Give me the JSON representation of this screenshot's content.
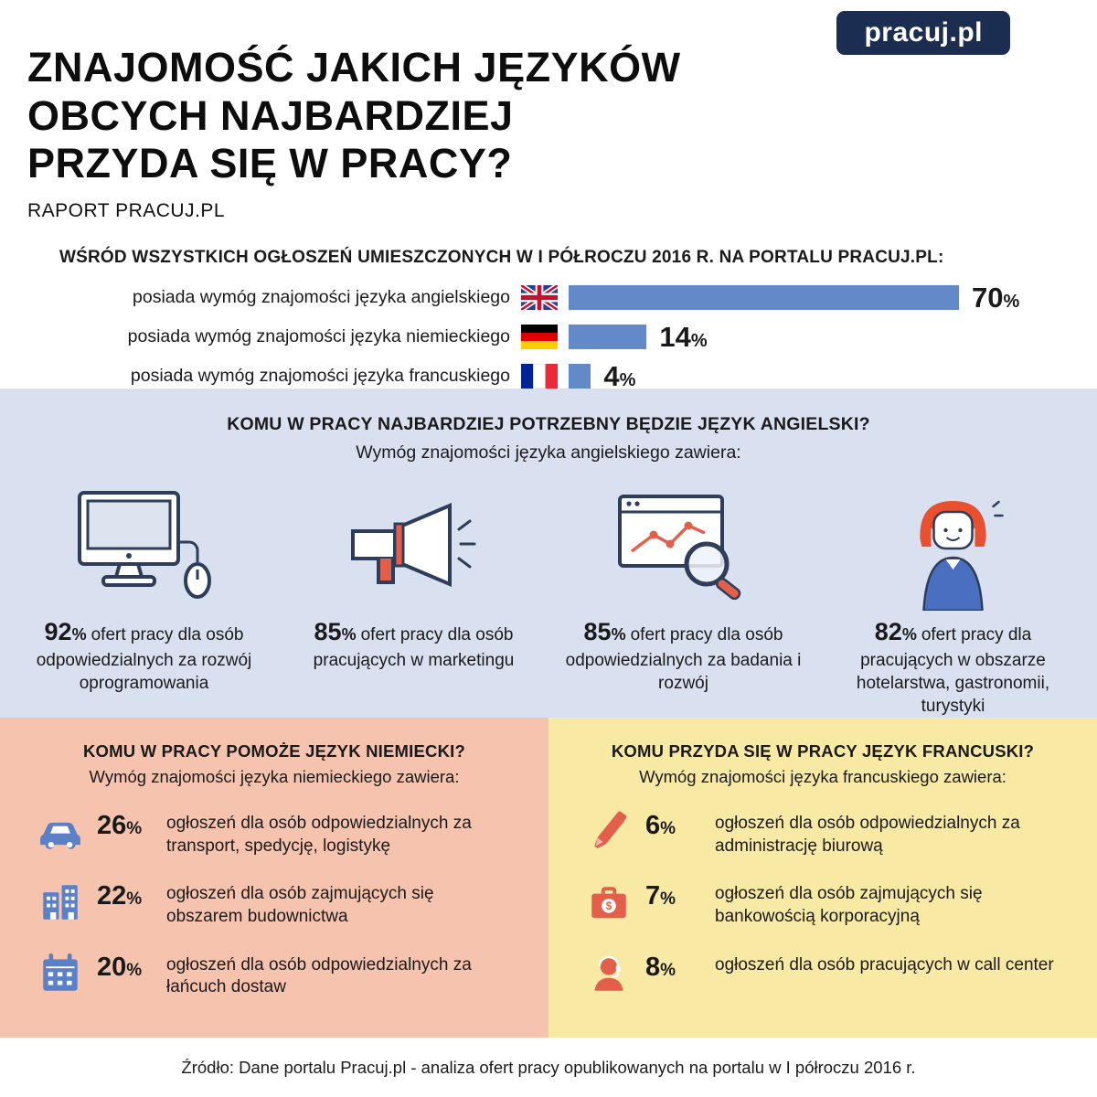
{
  "logo": {
    "text": "pracuj.pl"
  },
  "header": {
    "title_line1": "ZNAJOMOŚĆ JAKICH JĘZYKÓW",
    "title_line2": "OBCYCH NAJBARDZIEJ",
    "title_line3": "PRZYDA SIĘ W PRACY?",
    "subtitle": "RAPORT PRACUJ.PL"
  },
  "misc": {
    "percent_sign": "%"
  },
  "chart_data": {
    "type": "bar",
    "orientation": "horizontal",
    "title": "WŚRÓD WSZYSTKICH OGŁOSZEŃ UMIESZCZONYCH W I PÓŁROCZU 2016 R. NA PORTALU PRACUJ.PL:",
    "categories": [
      "posiada wymóg znajomości języka angielskiego",
      "posiada wymóg znajomości języka niemieckiego",
      "posiada wymóg znajomości języka francuskiego"
    ],
    "flags": [
      "uk-flag",
      "germany-flag",
      "france-flag"
    ],
    "values": [
      70,
      14,
      4
    ],
    "unit": "%",
    "xlim": [
      0,
      100
    ],
    "bar_color": "#6489c9",
    "grid": false,
    "legend": "none"
  },
  "english_section": {
    "heading": "KOMU W PRACY NAJBARDZIEJ POTRZEBNY BĘDZIE JĘZYK ANGIELSKI?",
    "subheading": "Wymóg znajomości języka angielskiego zawiera:",
    "background_color": "#d9e0ef",
    "items": [
      {
        "icon": "computer-icon",
        "percent": 92,
        "text": "ofert pracy dla osób odpowiedzialnych za rozwój oprogramowania"
      },
      {
        "icon": "megaphone-icon",
        "percent": 85,
        "text": "ofert pracy dla osób pracujących w marketingu"
      },
      {
        "icon": "chart-magnifier-icon",
        "percent": 85,
        "text": "ofert pracy dla osób odpowiedzialnych za badania i rozwój"
      },
      {
        "icon": "hospitality-woman-icon",
        "percent": 82,
        "text": "ofert pracy dla pracujących w obszarze hotelarstwa, gastronomii, turystyki"
      }
    ]
  },
  "german_section": {
    "heading": "KOMU W PRACY POMOŻE JĘZYK NIEMIECKI?",
    "subheading": "Wymóg znajomości języka niemieckiego zawiera:",
    "background_color": "#f6c3af",
    "accent_color": "#5b80c6",
    "items": [
      {
        "icon": "car-icon",
        "percent": 26,
        "text": "ogłoszeń dla osób odpowiedzialnych za transport, spedycję, logistykę"
      },
      {
        "icon": "building-icon",
        "percent": 22,
        "text": "ogłoszeń dla osób zajmujących się obszarem budownictwa"
      },
      {
        "icon": "calendar-icon",
        "percent": 20,
        "text": "ogłoszeń dla osób odpowiedzialnych za łańcuch dostaw"
      }
    ]
  },
  "french_section": {
    "heading": "KOMU PRZYDA SIĘ W PRACY JĘZYK FRANCUSKI?",
    "subheading": "Wymóg znajomości języka francuskiego zawiera:",
    "background_color": "#f8e9a4",
    "accent_color": "#e2604a",
    "items": [
      {
        "icon": "pencil-icon",
        "percent": 6,
        "text": "ogłoszeń dla osób odpowiedzialnych za administrację biurową"
      },
      {
        "icon": "briefcase-dollar-icon",
        "percent": 7,
        "text": "ogłoszeń dla osób zajmujących się bankowością korporacyjną"
      },
      {
        "icon": "call-center-icon",
        "percent": 8,
        "text": "ogłoszeń dla osób pracujących w call center"
      }
    ]
  },
  "footer": {
    "source": "Źródło: Dane portalu Pracuj.pl - analiza ofert pracy opublikowanych na portalu w I półroczu 2016 r."
  }
}
